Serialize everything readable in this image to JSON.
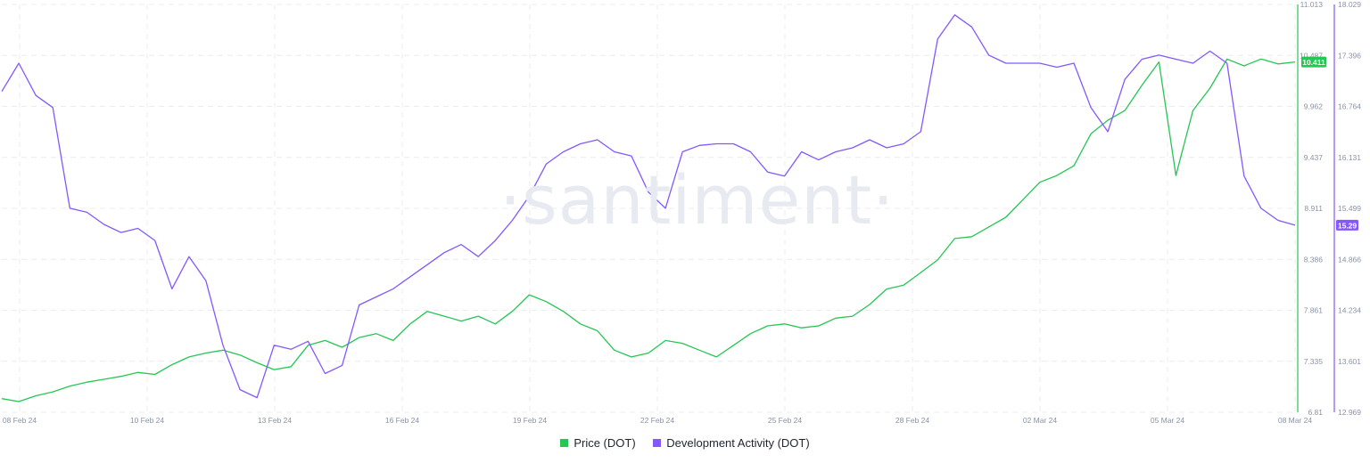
{
  "watermark": "·santiment·",
  "chart_data": {
    "type": "line",
    "x_ticks": [
      "08 Feb 24",
      "10 Feb 24",
      "13 Feb 24",
      "16 Feb 24",
      "19 Feb 24",
      "22 Feb 24",
      "25 Feb 24",
      "28 Feb 24",
      "02 Mar 24",
      "05 Mar 24",
      "08 Mar 24"
    ],
    "y_left_ticks": [
      "11.013",
      "10.487",
      "9.962",
      "9.437",
      "8.911",
      "8.386",
      "7.861",
      "7.335",
      "6.81"
    ],
    "y_left_range": [
      6.81,
      11.013
    ],
    "y_right_ticks": [
      "18.029",
      "17.396",
      "16.764",
      "16.131",
      "15.499",
      "14.866",
      "14.234",
      "13.601",
      "12.969"
    ],
    "y_right_range": [
      12.969,
      18.029
    ],
    "grid": true,
    "legend_position": "bottom",
    "series": [
      {
        "name": "Price (DOT)",
        "color": "#26c653",
        "axis": "left",
        "current_label": "10.411",
        "points": [
          [
            0.0,
            6.95
          ],
          [
            0.5,
            6.92
          ],
          [
            1.0,
            6.98
          ],
          [
            1.5,
            7.02
          ],
          [
            2.0,
            7.08
          ],
          [
            2.5,
            7.12
          ],
          [
            3.0,
            7.15
          ],
          [
            3.5,
            7.18
          ],
          [
            4.0,
            7.22
          ],
          [
            4.5,
            7.2
          ],
          [
            5.0,
            7.3
          ],
          [
            5.5,
            7.38
          ],
          [
            6.0,
            7.42
          ],
          [
            6.5,
            7.45
          ],
          [
            7.0,
            7.4
          ],
          [
            7.5,
            7.32
          ],
          [
            8.0,
            7.25
          ],
          [
            8.5,
            7.28
          ],
          [
            9.0,
            7.5
          ],
          [
            9.5,
            7.55
          ],
          [
            10.0,
            7.48
          ],
          [
            10.5,
            7.58
          ],
          [
            11.0,
            7.62
          ],
          [
            11.5,
            7.55
          ],
          [
            12.0,
            7.72
          ],
          [
            12.5,
            7.85
          ],
          [
            13.0,
            7.8
          ],
          [
            13.5,
            7.75
          ],
          [
            14.0,
            7.8
          ],
          [
            14.5,
            7.72
          ],
          [
            15.0,
            7.85
          ],
          [
            15.5,
            8.02
          ],
          [
            16.0,
            7.95
          ],
          [
            16.5,
            7.85
          ],
          [
            17.0,
            7.72
          ],
          [
            17.5,
            7.65
          ],
          [
            18.0,
            7.45
          ],
          [
            18.5,
            7.38
          ],
          [
            19.0,
            7.42
          ],
          [
            19.5,
            7.55
          ],
          [
            20.0,
            7.52
          ],
          [
            20.5,
            7.45
          ],
          [
            21.0,
            7.38
          ],
          [
            21.5,
            7.5
          ],
          [
            22.0,
            7.62
          ],
          [
            22.5,
            7.7
          ],
          [
            23.0,
            7.72
          ],
          [
            23.5,
            7.68
          ],
          [
            24.0,
            7.7
          ],
          [
            24.5,
            7.78
          ],
          [
            25.0,
            7.8
          ],
          [
            25.5,
            7.92
          ],
          [
            26.0,
            8.08
          ],
          [
            26.5,
            8.12
          ],
          [
            27.0,
            8.25
          ],
          [
            27.5,
            8.38
          ],
          [
            28.0,
            8.6
          ],
          [
            28.5,
            8.62
          ],
          [
            29.0,
            8.72
          ],
          [
            29.5,
            8.82
          ],
          [
            30.0,
            9.0
          ],
          [
            30.5,
            9.18
          ],
          [
            31.0,
            9.25
          ],
          [
            31.5,
            9.35
          ],
          [
            32.0,
            9.68
          ],
          [
            32.5,
            9.82
          ],
          [
            33.0,
            9.92
          ],
          [
            33.5,
            10.18
          ],
          [
            34.0,
            10.42
          ],
          [
            34.5,
            9.25
          ],
          [
            35.0,
            9.92
          ],
          [
            35.5,
            10.15
          ],
          [
            36.0,
            10.45
          ],
          [
            36.5,
            10.38
          ],
          [
            37.0,
            10.45
          ],
          [
            37.5,
            10.4
          ],
          [
            38.0,
            10.42
          ]
        ]
      },
      {
        "name": "Development Activity (DOT)",
        "color": "#8358ff",
        "axis": "right",
        "current_label": "15.29",
        "points": [
          [
            0.0,
            16.95
          ],
          [
            0.5,
            17.3
          ],
          [
            1.0,
            16.9
          ],
          [
            1.5,
            16.75
          ],
          [
            2.0,
            15.5
          ],
          [
            2.5,
            15.45
          ],
          [
            3.0,
            15.3
          ],
          [
            3.5,
            15.2
          ],
          [
            4.0,
            15.25
          ],
          [
            4.5,
            15.1
          ],
          [
            5.0,
            14.5
          ],
          [
            5.5,
            14.9
          ],
          [
            6.0,
            14.6
          ],
          [
            6.5,
            13.8
          ],
          [
            7.0,
            13.25
          ],
          [
            7.5,
            13.15
          ],
          [
            8.0,
            13.8
          ],
          [
            8.5,
            13.75
          ],
          [
            9.0,
            13.85
          ],
          [
            9.5,
            13.45
          ],
          [
            10.0,
            13.55
          ],
          [
            10.5,
            14.3
          ],
          [
            11.0,
            14.4
          ],
          [
            11.5,
            14.5
          ],
          [
            12.0,
            14.65
          ],
          [
            12.5,
            14.8
          ],
          [
            13.0,
            14.95
          ],
          [
            13.5,
            15.05
          ],
          [
            14.0,
            14.9
          ],
          [
            14.5,
            15.1
          ],
          [
            15.0,
            15.35
          ],
          [
            15.5,
            15.65
          ],
          [
            16.0,
            16.05
          ],
          [
            16.5,
            16.2
          ],
          [
            17.0,
            16.3
          ],
          [
            17.5,
            16.35
          ],
          [
            18.0,
            16.2
          ],
          [
            18.5,
            16.15
          ],
          [
            19.0,
            15.7
          ],
          [
            19.5,
            15.5
          ],
          [
            20.0,
            16.2
          ],
          [
            20.5,
            16.28
          ],
          [
            21.0,
            16.3
          ],
          [
            21.5,
            16.3
          ],
          [
            22.0,
            16.2
          ],
          [
            22.5,
            15.95
          ],
          [
            23.0,
            15.9
          ],
          [
            23.5,
            16.2
          ],
          [
            24.0,
            16.1
          ],
          [
            24.5,
            16.2
          ],
          [
            25.0,
            16.25
          ],
          [
            25.5,
            16.35
          ],
          [
            26.0,
            16.25
          ],
          [
            26.5,
            16.3
          ],
          [
            27.0,
            16.45
          ],
          [
            27.5,
            17.6
          ],
          [
            28.0,
            17.9
          ],
          [
            28.5,
            17.75
          ],
          [
            29.0,
            17.4
          ],
          [
            29.5,
            17.3
          ],
          [
            30.0,
            17.3
          ],
          [
            30.5,
            17.3
          ],
          [
            31.0,
            17.25
          ],
          [
            31.5,
            17.3
          ],
          [
            32.0,
            16.75
          ],
          [
            32.5,
            16.45
          ],
          [
            33.0,
            17.1
          ],
          [
            33.5,
            17.35
          ],
          [
            34.0,
            17.4
          ],
          [
            34.5,
            17.35
          ],
          [
            35.0,
            17.3
          ],
          [
            35.5,
            17.45
          ],
          [
            36.0,
            17.3
          ],
          [
            36.5,
            15.9
          ],
          [
            37.0,
            15.5
          ],
          [
            37.5,
            15.35
          ],
          [
            38.0,
            15.29
          ]
        ]
      }
    ]
  }
}
